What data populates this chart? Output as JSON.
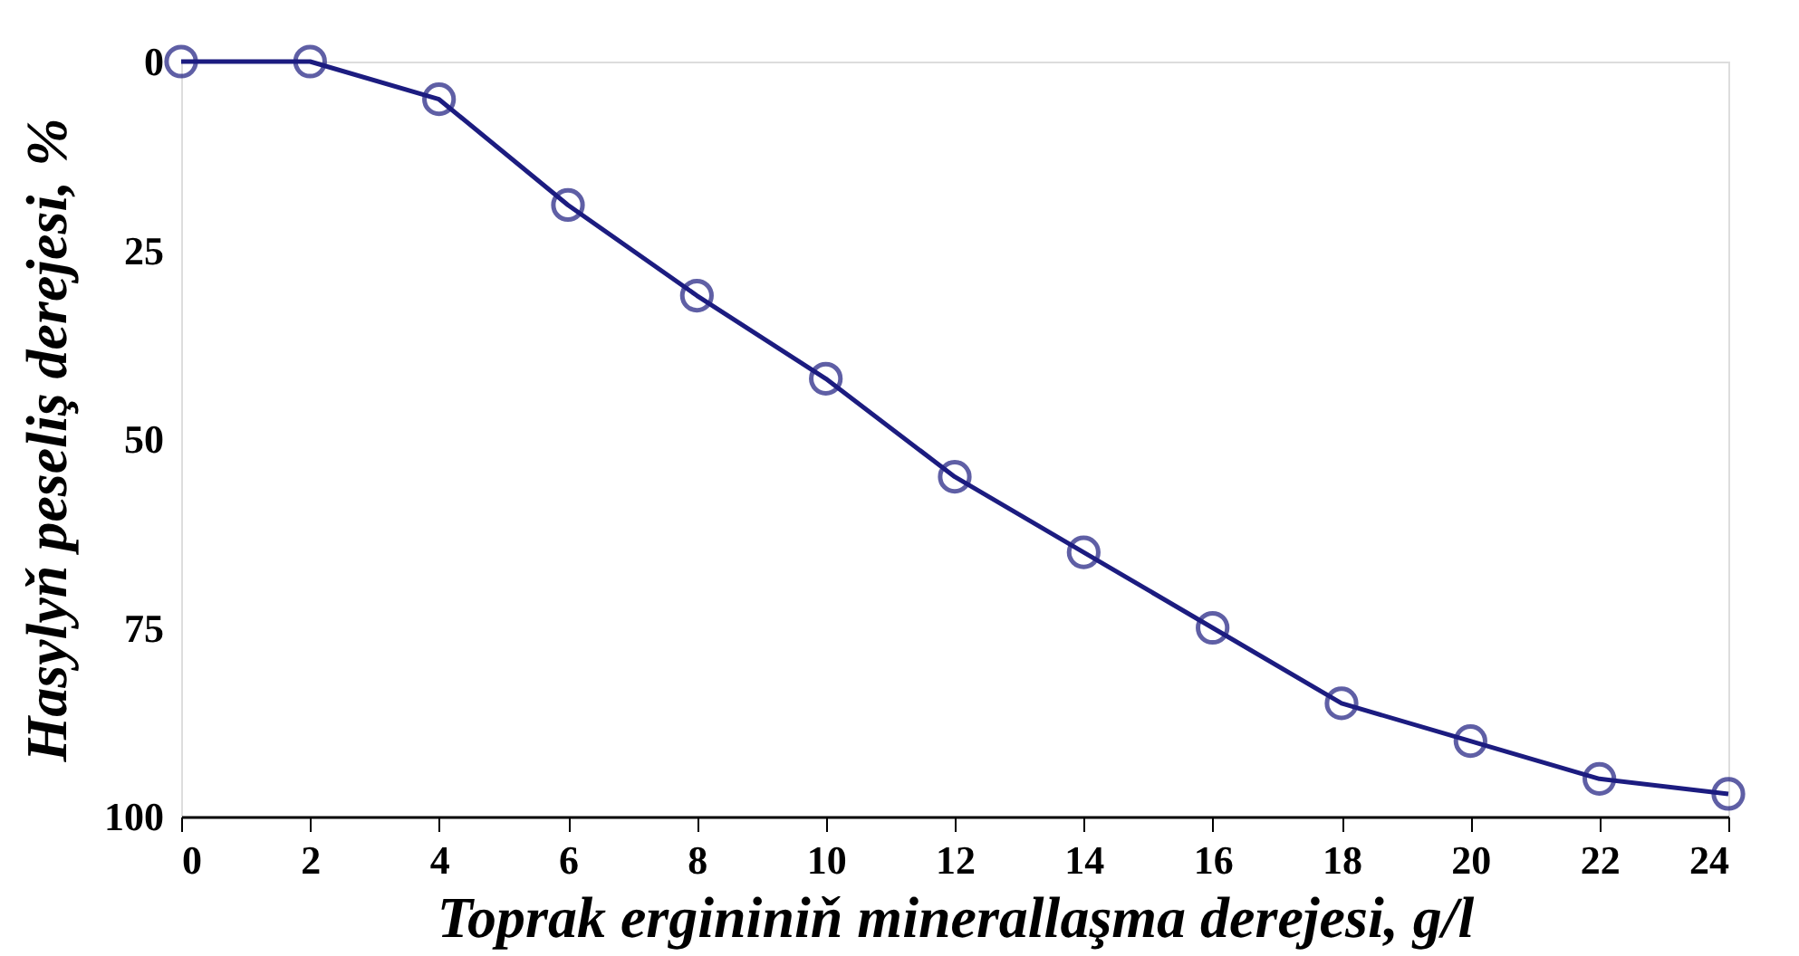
{
  "chart_data": {
    "type": "line",
    "xlabel": "Toprak ergininiň minerallaşma derejesi, g/l",
    "ylabel": "Hasylyň peseliş derejesi, %",
    "x": [
      0,
      2,
      4,
      6,
      8,
      10,
      12,
      14,
      16,
      18,
      20,
      22,
      24
    ],
    "series": [
      {
        "color": "#1c1c80",
        "values": [
          0,
          0,
          5,
          19,
          31,
          42,
          55,
          65,
          75,
          85,
          90,
          95,
          97
        ]
      }
    ],
    "xlim": [
      0,
      24
    ],
    "xticks": [
      0,
      2,
      4,
      6,
      8,
      10,
      12,
      14,
      16,
      18,
      20,
      22,
      24
    ],
    "ylim": [
      100,
      0
    ],
    "yticks": [
      0,
      25,
      50,
      75,
      100
    ],
    "grid": false,
    "marker": "circle",
    "line_style": "solid"
  }
}
